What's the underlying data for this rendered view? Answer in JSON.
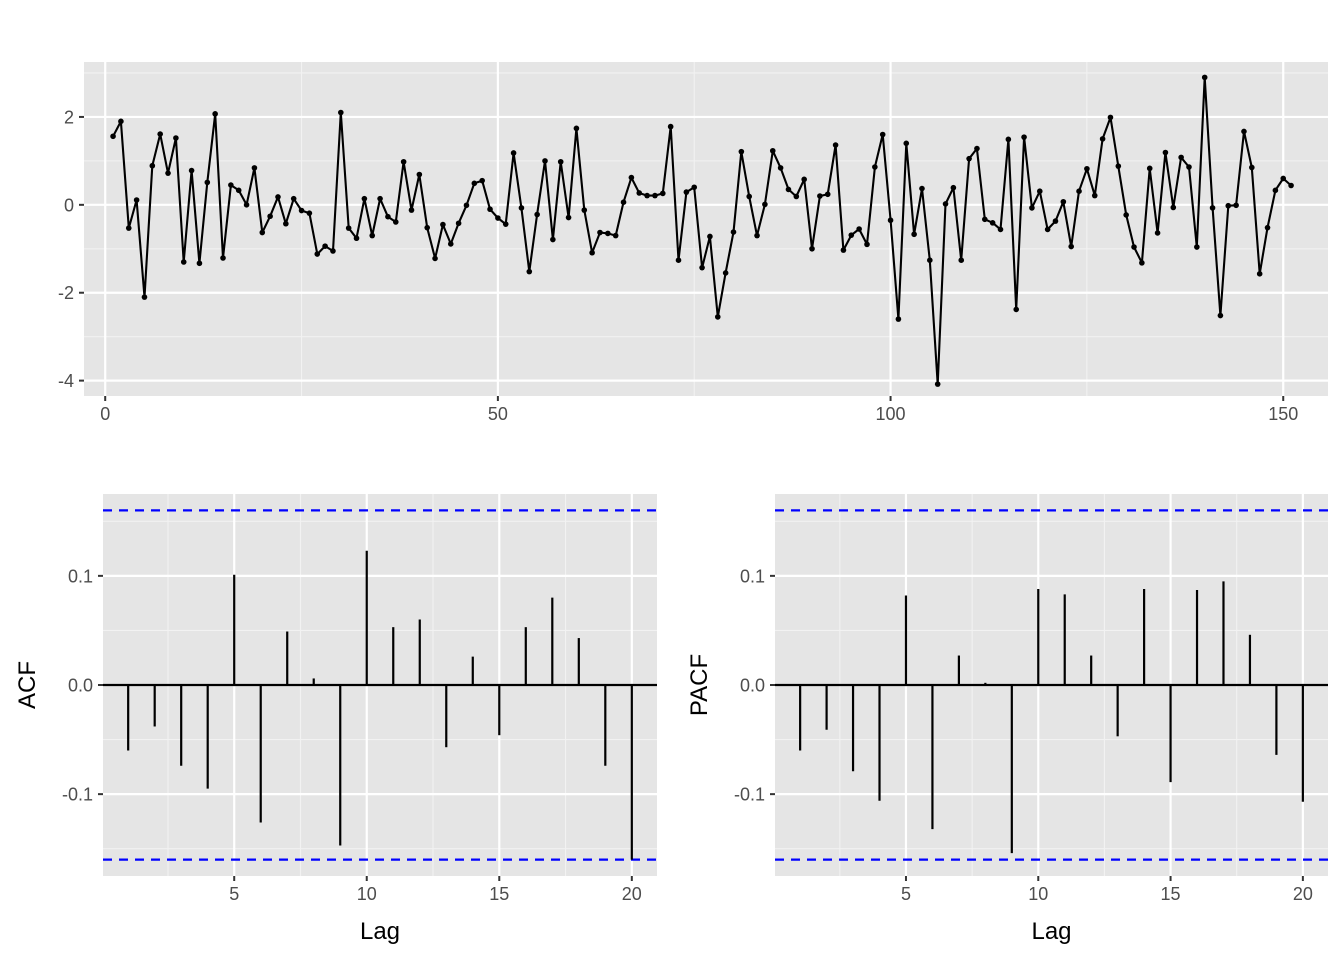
{
  "colors": {
    "panel_background": "#e5e5e5",
    "grid_major": "#ffffff",
    "grid_minor": "#f2f2f2",
    "line": "#000000",
    "confidence_band": "#0000ff"
  },
  "chart_data": [
    {
      "type": "line",
      "id": "series",
      "title": "",
      "xlabel": "",
      "ylabel": "",
      "markers": true,
      "xlim": [
        -2.7,
        155.7
      ],
      "ylim": [
        -4.35,
        3.25
      ],
      "x_ticks": [
        0,
        50,
        100,
        150
      ],
      "x_tick_labels": [
        "0",
        "50",
        "100",
        "150"
      ],
      "y_ticks": [
        2,
        0,
        -2,
        -4
      ],
      "y_tick_labels": [
        "2",
        "0",
        "-2",
        "-4"
      ],
      "x_start": 1,
      "values": [
        1.56,
        1.9,
        -0.53,
        0.11,
        -2.1,
        0.89,
        1.61,
        0.72,
        1.52,
        -1.3,
        0.78,
        -1.33,
        0.51,
        2.07,
        -1.21,
        0.45,
        0.33,
        0.0,
        0.84,
        -0.63,
        -0.26,
        0.18,
        -0.43,
        0.14,
        -0.13,
        -0.19,
        -1.12,
        -0.94,
        -1.05,
        2.1,
        -0.53,
        -0.76,
        0.14,
        -0.7,
        0.14,
        -0.27,
        -0.39,
        0.98,
        -0.12,
        0.69,
        -0.52,
        -1.22,
        -0.45,
        -0.89,
        -0.42,
        -0.01,
        0.49,
        0.55,
        -0.1,
        -0.3,
        -0.44,
        1.18,
        -0.07,
        -1.52,
        -0.22,
        1.0,
        -0.79,
        0.98,
        -0.29,
        1.74,
        -0.12,
        -1.09,
        -0.63,
        -0.65,
        -0.7,
        0.06,
        0.62,
        0.27,
        0.21,
        0.21,
        0.26,
        1.78,
        -1.26,
        0.29,
        0.4,
        -1.43,
        -0.72,
        -2.55,
        -1.55,
        -0.62,
        1.21,
        0.19,
        -0.7,
        0.01,
        1.23,
        0.84,
        0.35,
        0.19,
        0.58,
        -1.0,
        0.2,
        0.24,
        1.36,
        -1.03,
        -0.69,
        -0.55,
        -0.9,
        0.86,
        1.6,
        -0.35,
        -2.6,
        1.4,
        -0.67,
        0.37,
        -1.26,
        -4.08,
        0.02,
        0.39,
        -1.26,
        1.05,
        1.28,
        -0.33,
        -0.41,
        -0.56,
        1.49,
        -2.38,
        1.54,
        -0.07,
        0.31,
        -0.56,
        -0.37,
        0.07,
        -0.95,
        0.31,
        0.82,
        0.21,
        1.5,
        1.99,
        0.88,
        -0.23,
        -0.96,
        -1.32,
        0.83,
        -0.64,
        1.19,
        -0.06,
        1.08,
        0.86,
        -0.96,
        2.9,
        -0.07,
        -2.52,
        -0.02,
        -0.01,
        1.67,
        0.85,
        -1.57,
        -0.52,
        0.33,
        0.6,
        0.44
      ]
    },
    {
      "type": "bar",
      "id": "acf",
      "title": "",
      "xlabel": "Lag",
      "ylabel": "ACF",
      "xlim": [
        0.05,
        20.95
      ],
      "ylim": [
        -0.175,
        0.175
      ],
      "x_ticks": [
        5,
        10,
        15,
        20
      ],
      "x_tick_labels": [
        "5",
        "10",
        "15",
        "20"
      ],
      "y_ticks": [
        0.1,
        0.0,
        -0.1
      ],
      "y_tick_labels": [
        "0.1",
        "0.0",
        "-0.1"
      ],
      "confidence_bound": 0.16,
      "categories": [
        1,
        2,
        3,
        4,
        5,
        6,
        7,
        8,
        9,
        10,
        11,
        12,
        13,
        14,
        15,
        16,
        17,
        18,
        19,
        20
      ],
      "values": [
        -0.06,
        -0.038,
        -0.074,
        -0.095,
        0.101,
        -0.126,
        0.049,
        0.006,
        -0.147,
        0.123,
        0.053,
        0.06,
        -0.057,
        0.026,
        -0.046,
        0.053,
        0.08,
        0.043,
        -0.074,
        -0.16
      ]
    },
    {
      "type": "bar",
      "id": "pacf",
      "title": "",
      "xlabel": "Lag",
      "ylabel": "PACF",
      "xlim": [
        0.05,
        20.95
      ],
      "ylim": [
        -0.175,
        0.175
      ],
      "x_ticks": [
        5,
        10,
        15,
        20
      ],
      "x_tick_labels": [
        "5",
        "10",
        "15",
        "20"
      ],
      "y_ticks": [
        0.1,
        0.0,
        -0.1
      ],
      "y_tick_labels": [
        "0.1",
        "0.0",
        "-0.1"
      ],
      "confidence_bound": 0.16,
      "categories": [
        1,
        2,
        3,
        4,
        5,
        6,
        7,
        8,
        9,
        10,
        11,
        12,
        13,
        14,
        15,
        16,
        17,
        18,
        19,
        20
      ],
      "values": [
        -0.06,
        -0.041,
        -0.079,
        -0.106,
        0.082,
        -0.132,
        0.027,
        0.002,
        -0.154,
        0.088,
        0.083,
        0.027,
        -0.047,
        0.088,
        -0.089,
        0.087,
        0.095,
        0.046,
        -0.064,
        -0.107
      ]
    }
  ]
}
